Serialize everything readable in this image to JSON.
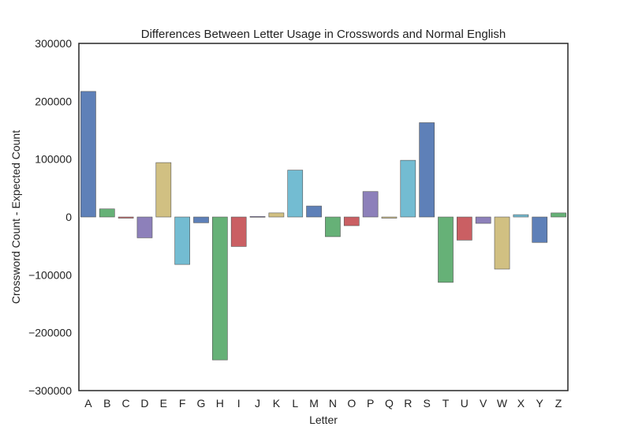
{
  "chart_data": {
    "type": "bar",
    "title": "Differences Between Letter Usage in Crosswords and Normal English",
    "xlabel": "Letter",
    "ylabel": "Crossword Count - Expected Count",
    "ylim": [
      -300000,
      300000
    ],
    "yticks": [
      300000,
      200000,
      100000,
      0,
      -100000,
      -200000,
      -300000
    ],
    "ytick_labels": [
      "300000",
      "200000",
      "100000",
      "0",
      "−100000",
      "−200000",
      "−300000"
    ],
    "grid": false,
    "categories": [
      "A",
      "B",
      "C",
      "D",
      "E",
      "F",
      "G",
      "H",
      "I",
      "J",
      "K",
      "L",
      "M",
      "N",
      "O",
      "P",
      "Q",
      "R",
      "S",
      "T",
      "U",
      "V",
      "W",
      "X",
      "Y",
      "Z"
    ],
    "values": [
      217000,
      14000,
      -2000,
      -36000,
      94000,
      -82000,
      -10000,
      -247000,
      -51000,
      1000,
      7000,
      81000,
      19000,
      -34000,
      -15000,
      44000,
      -2000,
      98000,
      163000,
      -113000,
      -40000,
      -11000,
      -90000,
      4000,
      -44000,
      7000
    ],
    "colors": [
      "#4c72b0",
      "#55a868",
      "#c44e52",
      "#8172b2",
      "#ccb974",
      "#64b5cd",
      "#4c72b0",
      "#55a868",
      "#c44e52",
      "#8172b2",
      "#ccb974",
      "#64b5cd",
      "#4c72b0",
      "#55a868",
      "#c44e52",
      "#8172b2",
      "#ccb974",
      "#64b5cd",
      "#4c72b0",
      "#55a868",
      "#c44e52",
      "#8172b2",
      "#ccb974",
      "#64b5cd",
      "#4c72b0",
      "#55a868"
    ]
  }
}
